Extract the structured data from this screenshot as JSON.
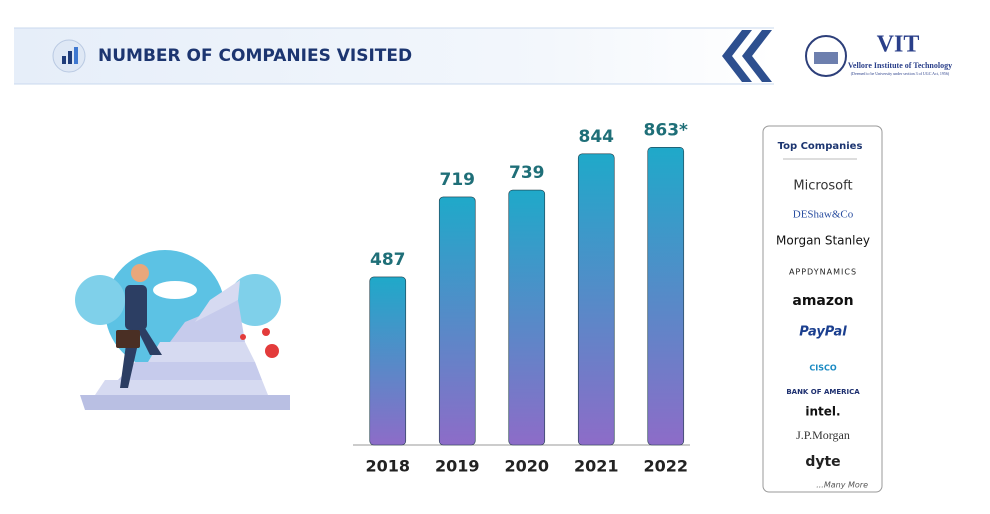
{
  "header": {
    "title": "NUMBER OF COMPANIES VISITED",
    "logo": {
      "name": "VIT",
      "subtitle": "Vellore Institute of Technology",
      "note": "(Deemed to be University under section 3 of UGC Act, 1956)"
    }
  },
  "chart_data": {
    "type": "bar",
    "categories": [
      "2018",
      "2019",
      "2020",
      "2021",
      "2022"
    ],
    "values": [
      487,
      719,
      739,
      844,
      863
    ],
    "value_labels": [
      "487",
      "719",
      "739",
      "844",
      "863*"
    ],
    "gradient": [
      "#1fa9c9",
      "#8d6cc8"
    ],
    "ylim": [
      0,
      1000
    ]
  },
  "top_companies": {
    "title": "Top Companies",
    "items": [
      "Microsoft",
      "DEShaw&Co",
      "Morgan Stanley",
      "APPDYNAMICS",
      "amazon",
      "PayPal",
      "CISCO",
      "BANK OF AMERICA",
      "intel.",
      "J.P.Morgan",
      "dyte"
    ],
    "more": "...Many More"
  }
}
